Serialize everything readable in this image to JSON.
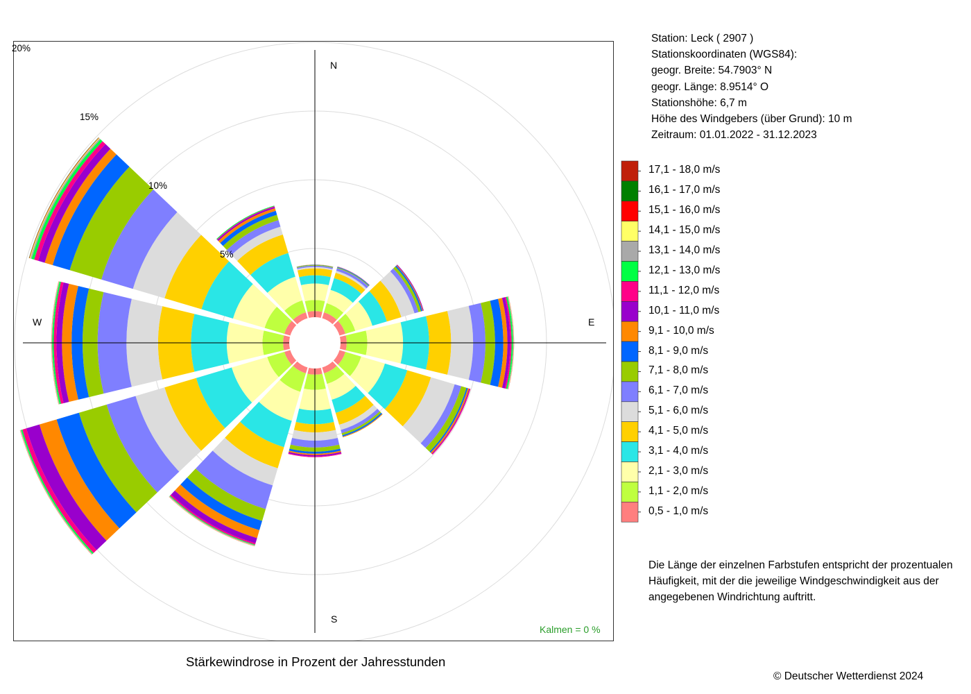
{
  "info": {
    "station": "Station:  Leck  ( 2907 )",
    "coords_title": "Stationskoordinaten (WGS84):",
    "lat": "geogr. Breite: 54.7903° N",
    "lon": "geogr. Länge:   8.9514° O",
    "height": "Stationshöhe: 6,7 m",
    "anemometer": "Höhe des Windgebers (über Grund): 10 m",
    "period": "Zeitraum: 01.01.2022 - 31.12.2023"
  },
  "caption": "Stärkewindrose in Prozent der Jahresstunden",
  "copyright": "© Deutscher Wetterdienst  2024",
  "calms": "Kalmen  =  0 %",
  "note": [
    "Die Länge der einzelnen Farbstufen entspricht der prozentualen",
    "Häufigkeit, mit der die jeweilige Windgeschwindigkeit aus der",
    "angegebenen Windrichtung auftritt."
  ],
  "directions": {
    "n": "N",
    "e": "E",
    "s": "S",
    "w": "W"
  },
  "ring_labels": {
    "r5": "5%",
    "r10": "10%",
    "r15": "15%",
    "r20": "20%"
  },
  "chart_data": {
    "type": "wind-rose",
    "title": "Stärkewindrose in Prozent der Jahresstunden",
    "unit": "%",
    "rlim": [
      0,
      20
    ],
    "ring_ticks": [
      5,
      10,
      15,
      20
    ],
    "legend_position": "right",
    "direction_labels": [
      "N",
      "E",
      "S",
      "W"
    ],
    "calms_percent": 0,
    "speed_classes": [
      {
        "label": "0,5 - 1,0 m/s",
        "color": "#FF7F7F"
      },
      {
        "label": "1,1 - 2,0 m/s",
        "color": "#BFFF3F"
      },
      {
        "label": "2,1 - 3,0 m/s",
        "color": "#FFFFAA"
      },
      {
        "label": "3,1 - 4,0 m/s",
        "color": "#2AE6E6"
      },
      {
        "label": "4,1 - 5,0 m/s",
        "color": "#FFD000"
      },
      {
        "label": "5,1 - 6,0 m/s",
        "color": "#DCDCDC"
      },
      {
        "label": "6,1 - 7,0 m/s",
        "color": "#7F7FFF"
      },
      {
        "label": "7,1 - 8,0 m/s",
        "color": "#99CC00"
      },
      {
        "label": "8,1 - 9,0 m/s",
        "color": "#0066FF"
      },
      {
        "label": "9,1 - 10,0 m/s",
        "color": "#FF8800"
      },
      {
        "label": "10,1 - 11,0 m/s",
        "color": "#9900CC"
      },
      {
        "label": "11,1 - 12,0 m/s",
        "color": "#FF0088"
      },
      {
        "label": "12,1 - 13,0 m/s",
        "color": "#00FF44"
      },
      {
        "label": "13,1 - 14,0 m/s",
        "color": "#A9A9A9"
      },
      {
        "label": "14,1 - 15,0 m/s",
        "color": "#FFFF66"
      },
      {
        "label": "15,1 - 16,0 m/s",
        "color": "#FF0000"
      },
      {
        "label": "16,1 - 17,0 m/s",
        "color": "#008000"
      },
      {
        "label": "17,1 - 18,0 m/s",
        "color": "#C0200A"
      }
    ],
    "sectors": [
      {
        "direction_deg": 0,
        "values": [
          0.45,
          0.8,
          1.2,
          0.6,
          0.5,
          0.1,
          0.1,
          0.05,
          0.02,
          0.01,
          0,
          0,
          0,
          0,
          0,
          0,
          0,
          0
        ]
      },
      {
        "direction_deg": 30,
        "values": [
          0.45,
          0.7,
          1.0,
          0.9,
          0.4,
          0.15,
          0.2,
          0.05,
          0.05,
          0.02,
          0.01,
          0,
          0,
          0,
          0,
          0,
          0,
          0
        ]
      },
      {
        "direction_deg": 60,
        "values": [
          0.45,
          0.75,
          1.3,
          1.1,
          1.1,
          1.0,
          0.3,
          0.2,
          0.1,
          0.05,
          0.05,
          0,
          0,
          0,
          0,
          0,
          0,
          0
        ]
      },
      {
        "direction_deg": 90,
        "values": [
          0.45,
          1.5,
          2.6,
          1.9,
          1.6,
          1.6,
          0.9,
          0.7,
          0.6,
          0.3,
          0.2,
          0.1,
          0.1,
          0.05,
          0.02,
          0.01,
          0,
          0
        ]
      },
      {
        "direction_deg": 120,
        "values": [
          0.45,
          1.2,
          1.8,
          1.7,
          1.8,
          1.8,
          0.5,
          0.4,
          0.1,
          0.1,
          0.05,
          0.05,
          0,
          0,
          0,
          0,
          0,
          0
        ]
      },
      {
        "direction_deg": 150,
        "values": [
          0.45,
          0.8,
          1.2,
          1.0,
          0.9,
          0.4,
          0.25,
          0.15,
          0.1,
          0.05,
          0,
          0,
          0,
          0,
          0,
          0,
          0,
          0
        ]
      },
      {
        "direction_deg": 180,
        "values": [
          0.45,
          1.1,
          1.5,
          1.0,
          0.6,
          0.6,
          0.5,
          0.3,
          0.15,
          0.1,
          0.1,
          0.05,
          0,
          0,
          0,
          0,
          0,
          0
        ]
      },
      {
        "direction_deg": 210,
        "values": [
          0.45,
          1.4,
          2.2,
          2.0,
          1.6,
          1.3,
          1.8,
          0.9,
          0.7,
          0.6,
          0.4,
          0.1,
          0.05,
          0.05,
          0.02,
          0.01,
          0,
          0
        ]
      },
      {
        "direction_deg": 240,
        "values": [
          0.45,
          1.3,
          2.7,
          2.7,
          2.4,
          2.2,
          2.2,
          2.1,
          1.7,
          1.3,
          1.0,
          0.3,
          0.1,
          0.05,
          0.02,
          0.01,
          0,
          0
        ]
      },
      {
        "direction_deg": 270,
        "values": [
          0.45,
          1.5,
          2.6,
          2.6,
          2.4,
          2.3,
          2.1,
          1.1,
          0.8,
          0.7,
          0.4,
          0.2,
          0.1,
          0.05,
          0.02,
          0.01,
          0,
          0
        ]
      },
      {
        "direction_deg": 300,
        "values": [
          0.45,
          1.5,
          2.4,
          2.4,
          2.8,
          2.4,
          2.4,
          2.4,
          1.3,
          0.6,
          0.5,
          0.3,
          0.2,
          0.1,
          0.05,
          0.03,
          0.02,
          0
        ]
      },
      {
        "direction_deg": 330,
        "values": [
          0.45,
          0.9,
          1.8,
          1.8,
          1.4,
          0.6,
          0.5,
          0.4,
          0.3,
          0.2,
          0.1,
          0.05,
          0.05,
          0,
          0,
          0,
          0,
          0
        ]
      }
    ]
  }
}
